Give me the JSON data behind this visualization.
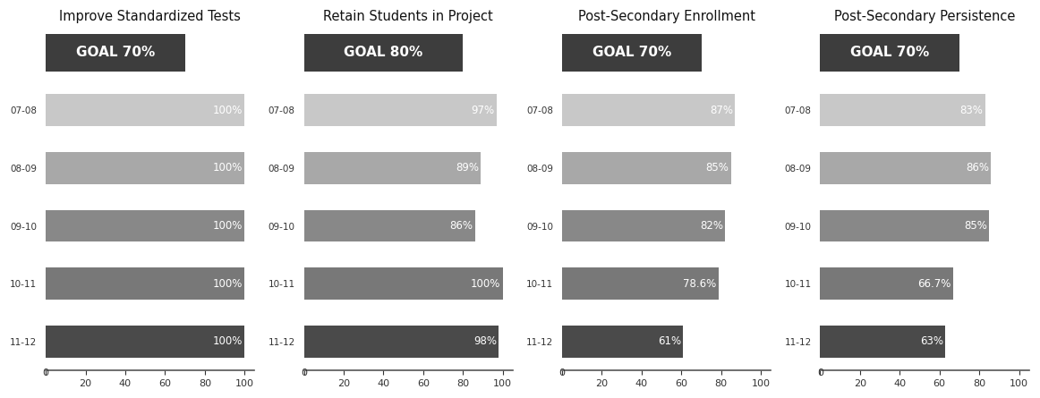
{
  "charts": [
    {
      "title": "Improve Standardized Tests",
      "goal": "GOAL 70%",
      "goal_value": 70,
      "years": [
        "07-08",
        "08-09",
        "09-10",
        "10-11",
        "11-12"
      ],
      "values": [
        100,
        100,
        100,
        100,
        100
      ],
      "labels": [
        "100%",
        "100%",
        "100%",
        "100%",
        "100%"
      ],
      "bar_colors": [
        "#c8c8c8",
        "#a8a8a8",
        "#888888",
        "#787878",
        "#4a4a4a"
      ]
    },
    {
      "title": "Retain Students in Project",
      "goal": "GOAL 80%",
      "goal_value": 80,
      "years": [
        "07-08",
        "08-09",
        "09-10",
        "10-11",
        "11-12"
      ],
      "values": [
        97,
        89,
        86,
        100,
        98
      ],
      "labels": [
        "97%",
        "89%",
        "86%",
        "100%",
        "98%"
      ],
      "bar_colors": [
        "#c8c8c8",
        "#a8a8a8",
        "#888888",
        "#787878",
        "#4a4a4a"
      ]
    },
    {
      "title": "Post-Secondary Enrollment",
      "goal": "GOAL 70%",
      "goal_value": 70,
      "years": [
        "07-08",
        "08-09",
        "09-10",
        "10-11",
        "11-12"
      ],
      "values": [
        87,
        85,
        82,
        78.6,
        61
      ],
      "labels": [
        "87%",
        "85%",
        "82%",
        "78.6%",
        "61%"
      ],
      "bar_colors": [
        "#c8c8c8",
        "#a8a8a8",
        "#888888",
        "#787878",
        "#4a4a4a"
      ]
    },
    {
      "title": "Post-Secondary Persistence",
      "goal": "GOAL 70%",
      "goal_value": 70,
      "years": [
        "07-08",
        "08-09",
        "09-10",
        "10-11",
        "11-12"
      ],
      "values": [
        83,
        86,
        85,
        66.7,
        63
      ],
      "labels": [
        "83%",
        "86%",
        "85%",
        "66.7%",
        "63%"
      ],
      "bar_colors": [
        "#c8c8c8",
        "#a8a8a8",
        "#888888",
        "#787878",
        "#4a4a4a"
      ]
    }
  ],
  "goal_bar_color": "#3d3d3d",
  "goal_text_color": "#ffffff",
  "background_color": "#ffffff",
  "title_fontsize": 10.5,
  "label_fontsize": 8.5,
  "year_fontsize": 7.5,
  "tick_fontsize": 8,
  "goal_fontsize": 11
}
